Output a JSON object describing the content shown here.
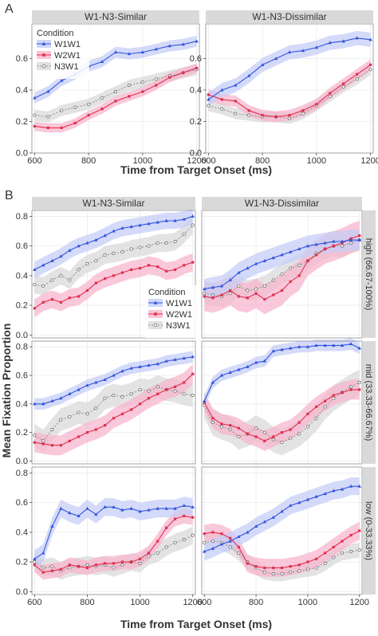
{
  "figure": {
    "panel_a_letter": "A",
    "panel_b_letter": "B",
    "ylabel": "Mean Fixation Proportion",
    "xlabel": "Time from Target Onset (ms)"
  },
  "legend": {
    "title": "Condition",
    "items": [
      "W1W1",
      "W2W1",
      "N3W1"
    ]
  },
  "colors": {
    "W1W1": "#3355dd",
    "W2W1": "#e0304f",
    "N3W1": "#999999",
    "W1W1_band": "#c6cdf7",
    "W2W1_band": "#f7b6cd",
    "N3W1_band": "#d9d9d9",
    "strip_bg": "#d9d9d9",
    "panel_border": "#8c8c8c",
    "grid": "#ebebeb"
  },
  "chart_data": [
    {
      "type": "line",
      "panel": "A",
      "title": "W1-N3-Similar",
      "row_label": "",
      "xlim": [
        590,
        1210
      ],
      "ylim": [
        0.0,
        0.82
      ],
      "x": [
        600,
        650,
        700,
        750,
        800,
        850,
        900,
        950,
        1000,
        1050,
        1100,
        1150,
        1200
      ],
      "xticks": [
        600,
        800,
        1000,
        1200
      ],
      "yticks": [
        0.0,
        0.2,
        0.4,
        0.6
      ],
      "series": [
        {
          "name": "W1W1",
          "values": [
            0.35,
            0.39,
            0.46,
            0.5,
            0.55,
            0.58,
            0.64,
            0.63,
            0.64,
            0.66,
            0.68,
            0.69,
            0.71
          ],
          "band": 0.035
        },
        {
          "name": "W2W1",
          "values": [
            0.17,
            0.16,
            0.16,
            0.19,
            0.24,
            0.28,
            0.33,
            0.36,
            0.39,
            0.43,
            0.48,
            0.51,
            0.54
          ],
          "band": 0.03
        },
        {
          "name": "N3W1",
          "values": [
            0.24,
            0.23,
            0.27,
            0.29,
            0.31,
            0.35,
            0.39,
            0.43,
            0.45,
            0.47,
            0.49,
            0.51,
            0.53
          ],
          "band": 0.035
        }
      ]
    },
    {
      "type": "line",
      "panel": "A",
      "title": "W1-N3-Dissimilar",
      "row_label": "",
      "xlim": [
        590,
        1210
      ],
      "ylim": [
        0.0,
        0.82
      ],
      "x": [
        600,
        650,
        700,
        750,
        800,
        850,
        900,
        950,
        1000,
        1050,
        1100,
        1150,
        1200
      ],
      "xticks": [
        600,
        800,
        1000,
        1200
      ],
      "yticks": [
        0.0,
        0.2,
        0.4,
        0.6
      ],
      "series": [
        {
          "name": "W1W1",
          "values": [
            0.34,
            0.4,
            0.43,
            0.49,
            0.56,
            0.6,
            0.64,
            0.65,
            0.67,
            0.7,
            0.71,
            0.73,
            0.72
          ],
          "band": 0.045
        },
        {
          "name": "W2W1",
          "values": [
            0.37,
            0.34,
            0.33,
            0.27,
            0.24,
            0.23,
            0.24,
            0.27,
            0.31,
            0.38,
            0.44,
            0.5,
            0.56
          ],
          "band": 0.035
        },
        {
          "name": "N3W1",
          "values": [
            0.3,
            0.28,
            0.25,
            0.24,
            0.23,
            0.23,
            0.22,
            0.25,
            0.3,
            0.36,
            0.42,
            0.47,
            0.53
          ],
          "band": 0.035
        }
      ]
    },
    {
      "type": "line",
      "panel": "B",
      "title": "W1-N3-Similar",
      "row_label": "",
      "xlim": [
        590,
        1210
      ],
      "ylim": [
        -0.02,
        0.84
      ],
      "x": [
        600,
        633,
        667,
        700,
        733,
        767,
        800,
        833,
        867,
        900,
        933,
        967,
        1000,
        1033,
        1067,
        1100,
        1133,
        1167,
        1200
      ],
      "xticks": [
        600,
        800,
        1000,
        1200
      ],
      "yticks": [
        0.0,
        0.2,
        0.4,
        0.6,
        0.8
      ],
      "series": [
        {
          "name": "W1W1",
          "values": [
            0.44,
            0.47,
            0.5,
            0.53,
            0.57,
            0.6,
            0.62,
            0.64,
            0.67,
            0.7,
            0.72,
            0.73,
            0.74,
            0.75,
            0.76,
            0.77,
            0.77,
            0.78,
            0.8
          ],
          "band": 0.055
        },
        {
          "name": "W2W1",
          "values": [
            0.18,
            0.22,
            0.24,
            0.22,
            0.25,
            0.26,
            0.3,
            0.35,
            0.38,
            0.4,
            0.42,
            0.44,
            0.45,
            0.47,
            0.46,
            0.43,
            0.44,
            0.47,
            0.49
          ],
          "band": 0.06
        },
        {
          "name": "N3W1",
          "values": [
            0.34,
            0.33,
            0.37,
            0.4,
            0.37,
            0.44,
            0.48,
            0.5,
            0.54,
            0.55,
            0.56,
            0.58,
            0.59,
            0.6,
            0.62,
            0.62,
            0.63,
            0.68,
            0.74
          ],
          "band": 0.06
        }
      ]
    },
    {
      "type": "line",
      "panel": "B",
      "title": "W1-N3-Dissimilar",
      "row_label": "high (66.67-100%)",
      "xlim": [
        590,
        1210
      ],
      "ylim": [
        -0.02,
        0.84
      ],
      "x": [
        600,
        633,
        667,
        700,
        733,
        767,
        800,
        833,
        867,
        900,
        933,
        967,
        1000,
        1033,
        1067,
        1100,
        1133,
        1167,
        1200
      ],
      "xticks": [
        600,
        800,
        1000,
        1200
      ],
      "yticks": [
        0.0,
        0.2,
        0.4,
        0.6,
        0.8
      ],
      "series": [
        {
          "name": "W1W1",
          "values": [
            0.31,
            0.32,
            0.33,
            0.37,
            0.42,
            0.45,
            0.48,
            0.5,
            0.52,
            0.54,
            0.56,
            0.58,
            0.6,
            0.61,
            0.62,
            0.63,
            0.63,
            0.64,
            0.64
          ],
          "band": 0.07
        },
        {
          "name": "W2W1",
          "values": [
            0.26,
            0.25,
            0.27,
            0.3,
            0.26,
            0.25,
            0.28,
            0.24,
            0.27,
            0.3,
            0.36,
            0.4,
            0.5,
            0.54,
            0.58,
            0.6,
            0.62,
            0.65,
            0.67
          ],
          "band": 0.1
        },
        {
          "name": "N3W1",
          "values": [
            0.28,
            0.27,
            0.26,
            0.28,
            0.33,
            0.3,
            0.31,
            0.33,
            0.37,
            0.41,
            0.45,
            0.47,
            0.5,
            0.55,
            0.58,
            0.6,
            0.6,
            0.62,
            0.64
          ],
          "band": 0.07
        }
      ]
    },
    {
      "type": "line",
      "panel": "B",
      "title": "",
      "row_label": "",
      "xlim": [
        590,
        1210
      ],
      "ylim": [
        -0.02,
        0.84
      ],
      "x": [
        600,
        633,
        667,
        700,
        733,
        767,
        800,
        833,
        867,
        900,
        933,
        967,
        1000,
        1033,
        1067,
        1100,
        1133,
        1167,
        1200
      ],
      "xticks": [
        600,
        800,
        1000,
        1200
      ],
      "yticks": [
        0.0,
        0.2,
        0.4,
        0.6,
        0.8
      ],
      "series": [
        {
          "name": "W1W1",
          "values": [
            0.4,
            0.4,
            0.42,
            0.44,
            0.47,
            0.5,
            0.53,
            0.55,
            0.57,
            0.6,
            0.63,
            0.65,
            0.66,
            0.67,
            0.68,
            0.7,
            0.71,
            0.72,
            0.73
          ],
          "band": 0.04
        },
        {
          "name": "W2W1",
          "values": [
            0.13,
            0.12,
            0.11,
            0.11,
            0.14,
            0.17,
            0.2,
            0.22,
            0.25,
            0.3,
            0.33,
            0.36,
            0.4,
            0.44,
            0.47,
            0.5,
            0.52,
            0.55,
            0.61
          ],
          "band": 0.07
        },
        {
          "name": "N3W1",
          "values": [
            0.18,
            0.14,
            0.22,
            0.29,
            0.31,
            0.34,
            0.33,
            0.37,
            0.44,
            0.46,
            0.45,
            0.47,
            0.5,
            0.49,
            0.52,
            0.5,
            0.49,
            0.47,
            0.46
          ],
          "band": 0.08
        }
      ]
    },
    {
      "type": "line",
      "panel": "B",
      "title": "",
      "row_label": "mid (33.33-66.67%)",
      "xlim": [
        590,
        1210
      ],
      "ylim": [
        -0.02,
        0.84
      ],
      "x": [
        600,
        633,
        667,
        700,
        733,
        767,
        800,
        833,
        867,
        900,
        933,
        967,
        1000,
        1033,
        1067,
        1100,
        1133,
        1167,
        1200
      ],
      "xticks": [
        600,
        800,
        1000,
        1200
      ],
      "yticks": [
        0.0,
        0.2,
        0.4,
        0.6,
        0.8
      ],
      "series": [
        {
          "name": "W1W1",
          "values": [
            0.42,
            0.55,
            0.6,
            0.62,
            0.64,
            0.66,
            0.69,
            0.7,
            0.77,
            0.78,
            0.79,
            0.8,
            0.8,
            0.81,
            0.81,
            0.81,
            0.81,
            0.82,
            0.79
          ],
          "band": 0.04
        },
        {
          "name": "W2W1",
          "values": [
            0.41,
            0.3,
            0.26,
            0.25,
            0.23,
            0.19,
            0.17,
            0.14,
            0.17,
            0.2,
            0.22,
            0.27,
            0.33,
            0.38,
            0.42,
            0.46,
            0.48,
            0.5,
            0.5
          ],
          "band": 0.07
        },
        {
          "name": "N3W1",
          "values": [
            0.39,
            0.27,
            0.24,
            0.22,
            0.17,
            0.19,
            0.23,
            0.2,
            0.15,
            0.13,
            0.16,
            0.19,
            0.24,
            0.3,
            0.38,
            0.44,
            0.48,
            0.52,
            0.55
          ],
          "band": 0.09
        }
      ]
    },
    {
      "type": "line",
      "panel": "B",
      "title": "",
      "row_label": "",
      "xlim": [
        590,
        1210
      ],
      "ylim": [
        -0.02,
        0.84
      ],
      "x": [
        600,
        633,
        667,
        700,
        733,
        767,
        800,
        833,
        867,
        900,
        933,
        967,
        1000,
        1033,
        1067,
        1100,
        1133,
        1167,
        1200
      ],
      "xticks": [
        600,
        800,
        1000,
        1200
      ],
      "yticks": [
        0.0,
        0.2,
        0.4,
        0.6,
        0.8
      ],
      "series": [
        {
          "name": "W1W1",
          "values": [
            0.22,
            0.26,
            0.44,
            0.56,
            0.53,
            0.51,
            0.56,
            0.52,
            0.57,
            0.57,
            0.55,
            0.56,
            0.54,
            0.55,
            0.56,
            0.56,
            0.56,
            0.58,
            0.57
          ],
          "band": 0.06
        },
        {
          "name": "W2W1",
          "values": [
            0.18,
            0.13,
            0.14,
            0.15,
            0.18,
            0.17,
            0.16,
            0.18,
            0.19,
            0.19,
            0.2,
            0.2,
            0.22,
            0.26,
            0.34,
            0.43,
            0.49,
            0.51,
            0.5
          ],
          "band": 0.05
        },
        {
          "name": "N3W1",
          "values": [
            0.2,
            0.16,
            0.17,
            0.14,
            0.16,
            0.17,
            0.18,
            0.17,
            0.18,
            0.16,
            0.18,
            0.2,
            0.19,
            0.24,
            0.26,
            0.3,
            0.33,
            0.35,
            0.38
          ],
          "band": 0.06
        }
      ]
    },
    {
      "type": "line",
      "panel": "B",
      "title": "",
      "row_label": "low (0-33.33%)",
      "xlim": [
        590,
        1210
      ],
      "ylim": [
        -0.02,
        0.84
      ],
      "x": [
        600,
        633,
        667,
        700,
        733,
        767,
        800,
        833,
        867,
        900,
        933,
        967,
        1000,
        1033,
        1067,
        1100,
        1133,
        1167,
        1200
      ],
      "xticks": [
        600,
        800,
        1000,
        1200
      ],
      "yticks": [
        0.0,
        0.2,
        0.4,
        0.6,
        0.8
      ],
      "series": [
        {
          "name": "W1W1",
          "values": [
            0.27,
            0.29,
            0.32,
            0.34,
            0.37,
            0.4,
            0.44,
            0.47,
            0.5,
            0.54,
            0.58,
            0.6,
            0.62,
            0.64,
            0.66,
            0.68,
            0.69,
            0.71,
            0.71
          ],
          "band": 0.06
        },
        {
          "name": "W2W1",
          "values": [
            0.39,
            0.4,
            0.39,
            0.36,
            0.3,
            0.19,
            0.17,
            0.16,
            0.16,
            0.16,
            0.17,
            0.18,
            0.2,
            0.22,
            0.26,
            0.3,
            0.34,
            0.38,
            0.41
          ],
          "band": 0.06
        },
        {
          "name": "N3W1",
          "values": [
            0.33,
            0.34,
            0.33,
            0.3,
            0.26,
            0.2,
            0.16,
            0.13,
            0.12,
            0.12,
            0.13,
            0.14,
            0.15,
            0.16,
            0.19,
            0.23,
            0.26,
            0.27,
            0.28
          ],
          "band": 0.05
        }
      ]
    }
  ]
}
